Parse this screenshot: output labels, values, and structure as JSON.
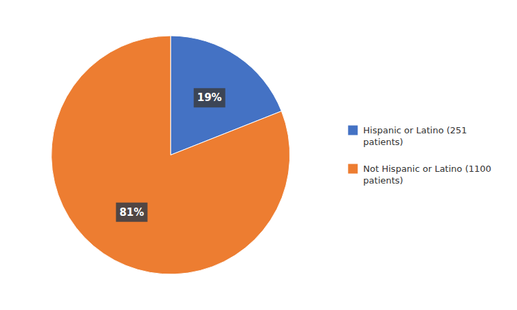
{
  "chart_data": {
    "type": "pie",
    "categories": [
      "Hispanic or Latino (251\npatients)",
      "Not Hispanic or Latino (1100\npatients)"
    ],
    "values": [
      19,
      81
    ],
    "value_labels": [
      "19%",
      "81%"
    ],
    "colors": [
      "#4472C4",
      "#ED7D31"
    ],
    "data_labels": true,
    "legend": "right"
  }
}
